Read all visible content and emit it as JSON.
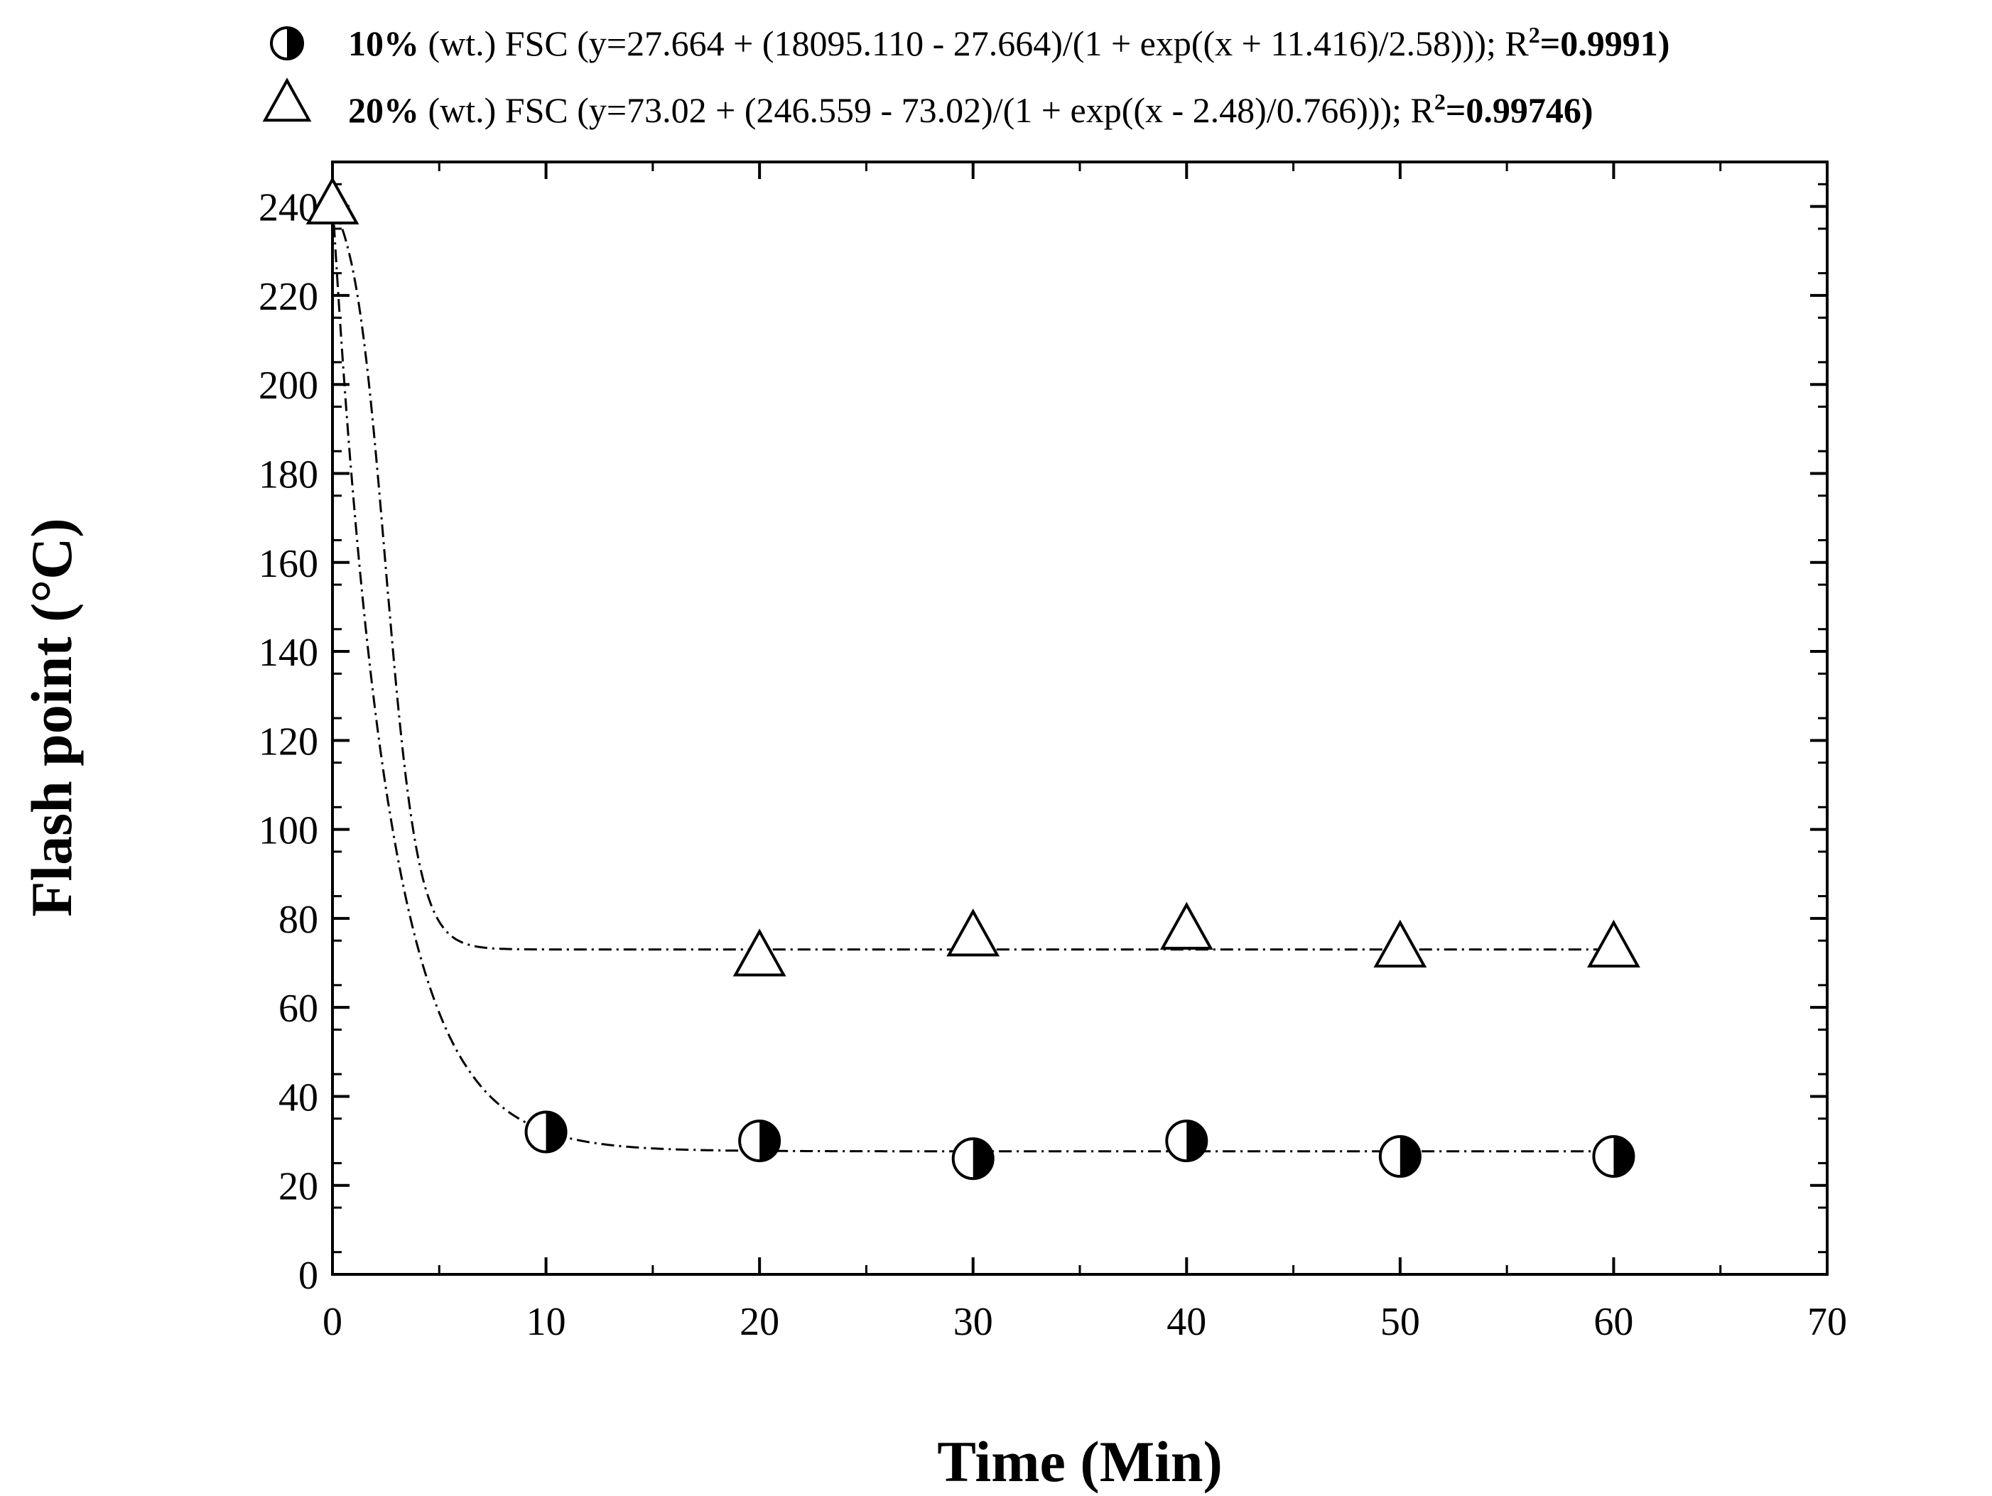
{
  "chart_data": {
    "type": "scatter",
    "xlabel": "Time (Min)",
    "ylabel": "Flash point (°C)",
    "xlim": [
      0,
      70
    ],
    "ylim": [
      0,
      250
    ],
    "x_ticks": [
      "0",
      "10",
      "20",
      "30",
      "40",
      "50",
      "60",
      "70"
    ],
    "y_ticks": [
      "0",
      "20",
      "40",
      "60",
      "80",
      "100",
      "120",
      "140",
      "160",
      "180",
      "200",
      "220",
      "240"
    ],
    "grid": false,
    "legend_position": "top",
    "series": [
      {
        "name": "10% (wt.) FSC (y=27.664 + (18095.110 - 27.664)/(1 + exp((x + 11.416)/2.58))); R²=0.9991",
        "legend_main": "10%",
        "legend_rest": " (wt.) FSC (y=27.664 + (18095.110 - 27.664)/(1 + exp((x + 11.416)/2.58))); R",
        "legend_sup": "2",
        "legend_tail": "=0.9991)",
        "marker": "half-filled-circle",
        "x": [
          0,
          10,
          20,
          30,
          40,
          50,
          60
        ],
        "y": [
          240,
          32,
          30,
          26,
          30,
          26.5,
          26.5
        ],
        "fit": {
          "A1": 18095.11,
          "A2": 27.664,
          "x0": -11.416,
          "dx": 2.58
        }
      },
      {
        "name": "20% (wt.) FSC (y=73.02 + (246.559 - 73.02)/(1 + exp((x - 2.48)/0.766))); R²=0.99746",
        "legend_main": "20%",
        "legend_rest": " (wt.) FSC (y=73.02 + (246.559 - 73.02)/(1 + exp((x - 2.48)/0.766))); R",
        "legend_sup": "2",
        "legend_tail": "=0.99746)",
        "marker": "open-triangle",
        "x": [
          0,
          20,
          30,
          40,
          50,
          60
        ],
        "y": [
          240,
          71,
          75.5,
          77,
          73,
          73
        ],
        "fit": {
          "A1": 246.559,
          "A2": 73.02,
          "x0": 2.48,
          "dx": 0.766
        }
      }
    ]
  }
}
